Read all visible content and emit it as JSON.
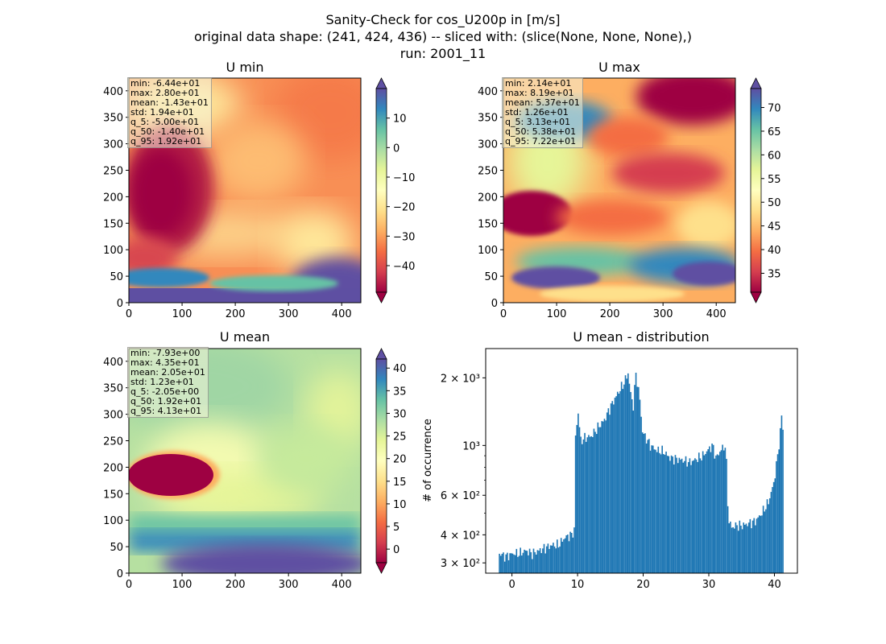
{
  "suptitle": {
    "line1": "Sanity-Check for cos_U200p in [m/s]",
    "line2": "original data shape: (241, 424, 436) -- sliced with: (slice(None, None, None),)",
    "line3": "run: 2001_11"
  },
  "colors": {
    "histogram_bar": "#1f77b4",
    "colormap": [
      "#9e0142",
      "#d53e4f",
      "#f46d43",
      "#fdae61",
      "#fee08b",
      "#ffffbf",
      "#e6f598",
      "#abdda4",
      "#66c2a5",
      "#3288bd",
      "#5e4fa2"
    ]
  },
  "chart_data": [
    {
      "type": "heatmap",
      "title": "U min",
      "xlim": [
        0,
        436
      ],
      "ylim": [
        0,
        424
      ],
      "xticks": [
        "0",
        "100",
        "200",
        "300",
        "400"
      ],
      "yticks": [
        "0",
        "50",
        "100",
        "150",
        "200",
        "250",
        "300",
        "350",
        "400"
      ],
      "colorbar": {
        "range": [
          -49,
          20
        ],
        "ticks": [
          "−40",
          "−30",
          "−20",
          "−10",
          "0",
          "10"
        ],
        "extend": "both"
      },
      "stats": [
        "min: -6.44e+01",
        "max: 2.80e+01",
        "mean: -1.43e+01",
        "std: 1.94e+01",
        "q_5: -5.00e+01",
        "q_50: -1.40e+01",
        "q_95: 1.92e+01"
      ]
    },
    {
      "type": "heatmap",
      "title": "U max",
      "xlim": [
        0,
        436
      ],
      "ylim": [
        0,
        424
      ],
      "xticks": [
        "0",
        "100",
        "200",
        "300",
        "400"
      ],
      "yticks": [
        "0",
        "50",
        "100",
        "150",
        "200",
        "250",
        "300",
        "350",
        "400"
      ],
      "colorbar": {
        "range": [
          31,
          74
        ],
        "ticks": [
          "35",
          "40",
          "45",
          "50",
          "55",
          "60",
          "65",
          "70"
        ],
        "extend": "both"
      },
      "stats": [
        "min: 2.14e+01",
        "max: 8.19e+01",
        "mean: 5.37e+01",
        "std: 1.26e+01",
        "q_5: 3.13e+01",
        "q_50: 5.38e+01",
        "q_95: 7.22e+01"
      ]
    },
    {
      "type": "heatmap",
      "title": "U mean",
      "xlim": [
        0,
        436
      ],
      "ylim": [
        0,
        424
      ],
      "xticks": [
        "0",
        "100",
        "200",
        "300",
        "400"
      ],
      "yticks": [
        "0",
        "50",
        "100",
        "150",
        "200",
        "250",
        "300",
        "350",
        "400"
      ],
      "colorbar": {
        "range": [
          -3,
          42
        ],
        "ticks": [
          "0",
          "5",
          "10",
          "15",
          "20",
          "25",
          "30",
          "35",
          "40"
        ],
        "extend": "both"
      },
      "stats": [
        "min: -7.93e+00",
        "max: 4.35e+01",
        "mean: 2.05e+01",
        "std: 1.23e+01",
        "q_5: -2.05e+00",
        "q_50: 1.92e+01",
        "q_95: 4.13e+01"
      ]
    },
    {
      "type": "bar",
      "title": "U mean - distribution",
      "ylabel": "# of occurrence",
      "yscale": "log",
      "xlim": [
        -4,
        43.5
      ],
      "ylim": [
        270,
        2700
      ],
      "xticks": [
        "0",
        "10",
        "20",
        "30",
        "40"
      ],
      "yticks": [
        {
          "value": 300,
          "label": "3 × 10²"
        },
        {
          "value": 400,
          "label": "4 × 10²"
        },
        {
          "value": 600,
          "label": "6 × 10²"
        },
        {
          "value": 1000,
          "label": "10³"
        },
        {
          "value": 2000,
          "label": "2 × 10³"
        }
      ],
      "bin_width": 0.2,
      "bins": [
        [
          -2.0,
          330
        ],
        [
          -1.0,
          320
        ],
        [
          0.0,
          330
        ],
        [
          1.0,
          330
        ],
        [
          2.0,
          340
        ],
        [
          3.0,
          330
        ],
        [
          4.0,
          340
        ],
        [
          5.0,
          350
        ],
        [
          6.0,
          360
        ],
        [
          7.0,
          360
        ],
        [
          8.0,
          390
        ],
        [
          9.0,
          400
        ],
        [
          9.4,
          420
        ],
        [
          9.6,
          1100
        ],
        [
          10.0,
          1400
        ],
        [
          10.4,
          1050
        ],
        [
          11.0,
          1080
        ],
        [
          12.0,
          1100
        ],
        [
          13.0,
          1200
        ],
        [
          14.0,
          1300
        ],
        [
          15.0,
          1500
        ],
        [
          16.0,
          1700
        ],
        [
          17.0,
          1900
        ],
        [
          17.6,
          2100
        ],
        [
          18.0,
          1700
        ],
        [
          18.4,
          1500
        ],
        [
          18.8,
          2100
        ],
        [
          19.4,
          1600
        ],
        [
          19.8,
          1150
        ],
        [
          21.0,
          1000
        ],
        [
          22.0,
          950
        ],
        [
          23.0,
          940
        ],
        [
          24.0,
          880
        ],
        [
          25.0,
          870
        ],
        [
          26.0,
          860
        ],
        [
          27.0,
          840
        ],
        [
          28.0,
          870
        ],
        [
          29.0,
          900
        ],
        [
          30.0,
          970
        ],
        [
          30.5,
          1000
        ],
        [
          31.0,
          880
        ],
        [
          31.8,
          960
        ],
        [
          32.5,
          1000
        ],
        [
          32.9,
          460
        ],
        [
          33.5,
          430
        ],
        [
          34.0,
          440
        ],
        [
          35.0,
          440
        ],
        [
          36.0,
          450
        ],
        [
          37.0,
          460
        ],
        [
          38.0,
          500
        ],
        [
          39.0,
          560
        ],
        [
          39.8,
          680
        ],
        [
          40.4,
          900
        ],
        [
          40.8,
          1150
        ],
        [
          41.0,
          1350
        ],
        [
          41.2,
          1200
        ]
      ]
    }
  ]
}
